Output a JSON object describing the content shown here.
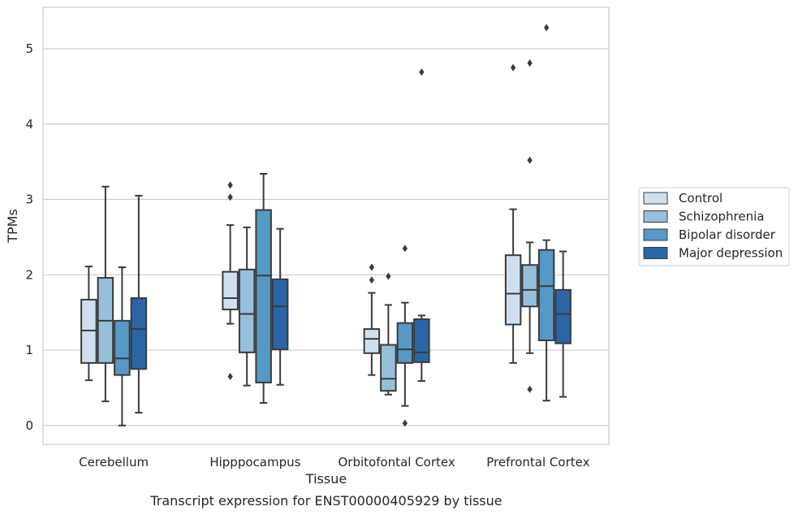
{
  "chart_data": {
    "type": "box",
    "title": "Transcript expression for ENST00000405929 by tissue",
    "xlabel": "Tissue",
    "ylabel": "TPMs",
    "ylim": [
      -0.25,
      5.55
    ],
    "yticks": [
      0,
      1,
      2,
      3,
      4,
      5
    ],
    "grid": "horizontal",
    "legend_position": "right",
    "categories": [
      "Cerebellum",
      "Hipppocampus",
      "Orbitofontal Cortex",
      "Prefrontal Cortex"
    ],
    "series": [
      {
        "name": "Control",
        "color": "#d0dfee",
        "boxes": [
          {
            "whisker_low": 0.6,
            "q1": 0.83,
            "median": 1.26,
            "q3": 1.67,
            "whisker_high": 2.11,
            "outliers": []
          },
          {
            "whisker_low": 1.35,
            "q1": 1.54,
            "median": 1.69,
            "q3": 2.04,
            "whisker_high": 2.66,
            "outliers": [
              3.19,
              3.03,
              0.65
            ]
          },
          {
            "whisker_low": 0.67,
            "q1": 0.96,
            "median": 1.15,
            "q3": 1.28,
            "whisker_high": 1.76,
            "outliers": [
              2.1,
              1.93
            ]
          },
          {
            "whisker_low": 0.83,
            "q1": 1.34,
            "median": 1.75,
            "q3": 2.26,
            "whisker_high": 2.87,
            "outliers": [
              4.75
            ]
          }
        ]
      },
      {
        "name": "Schizophrenia",
        "color": "#96bfd9",
        "boxes": [
          {
            "whisker_low": 0.32,
            "q1": 0.83,
            "median": 1.39,
            "q3": 1.96,
            "whisker_high": 3.17,
            "outliers": []
          },
          {
            "whisker_low": 0.53,
            "q1": 0.97,
            "median": 1.48,
            "q3": 2.07,
            "whisker_high": 2.63,
            "outliers": []
          },
          {
            "whisker_low": 0.41,
            "q1": 0.46,
            "median": 0.62,
            "q3": 1.07,
            "whisker_high": 1.6,
            "outliers": [
              1.98
            ]
          },
          {
            "whisker_low": 0.96,
            "q1": 1.58,
            "median": 1.8,
            "q3": 2.13,
            "whisker_high": 2.43,
            "outliers": [
              4.81,
              3.52,
              0.48
            ]
          }
        ]
      },
      {
        "name": "Bipolar disorder",
        "color": "#5698c6",
        "boxes": [
          {
            "whisker_low": 0.0,
            "q1": 0.67,
            "median": 0.89,
            "q3": 1.39,
            "whisker_high": 2.1,
            "outliers": []
          },
          {
            "whisker_low": 0.3,
            "q1": 0.57,
            "median": 1.99,
            "q3": 2.86,
            "whisker_high": 3.34,
            "outliers": []
          },
          {
            "whisker_low": 0.26,
            "q1": 0.83,
            "median": 1.01,
            "q3": 1.36,
            "whisker_high": 1.63,
            "outliers": [
              2.35,
              0.03
            ]
          },
          {
            "whisker_low": 0.33,
            "q1": 1.13,
            "median": 1.85,
            "q3": 2.33,
            "whisker_high": 2.46,
            "outliers": [
              5.28
            ]
          }
        ]
      },
      {
        "name": "Major depression",
        "color": "#2a66a5",
        "boxes": [
          {
            "whisker_low": 0.17,
            "q1": 0.75,
            "median": 1.28,
            "q3": 1.69,
            "whisker_high": 3.05,
            "outliers": []
          },
          {
            "whisker_low": 0.54,
            "q1": 1.01,
            "median": 1.58,
            "q3": 1.94,
            "whisker_high": 2.61,
            "outliers": []
          },
          {
            "whisker_low": 0.59,
            "q1": 0.84,
            "median": 0.97,
            "q3": 1.41,
            "whisker_high": 1.46,
            "outliers": [
              4.69
            ]
          },
          {
            "whisker_low": 0.38,
            "q1": 1.09,
            "median": 1.48,
            "q3": 1.8,
            "whisker_high": 2.31,
            "outliers": []
          }
        ]
      }
    ]
  }
}
